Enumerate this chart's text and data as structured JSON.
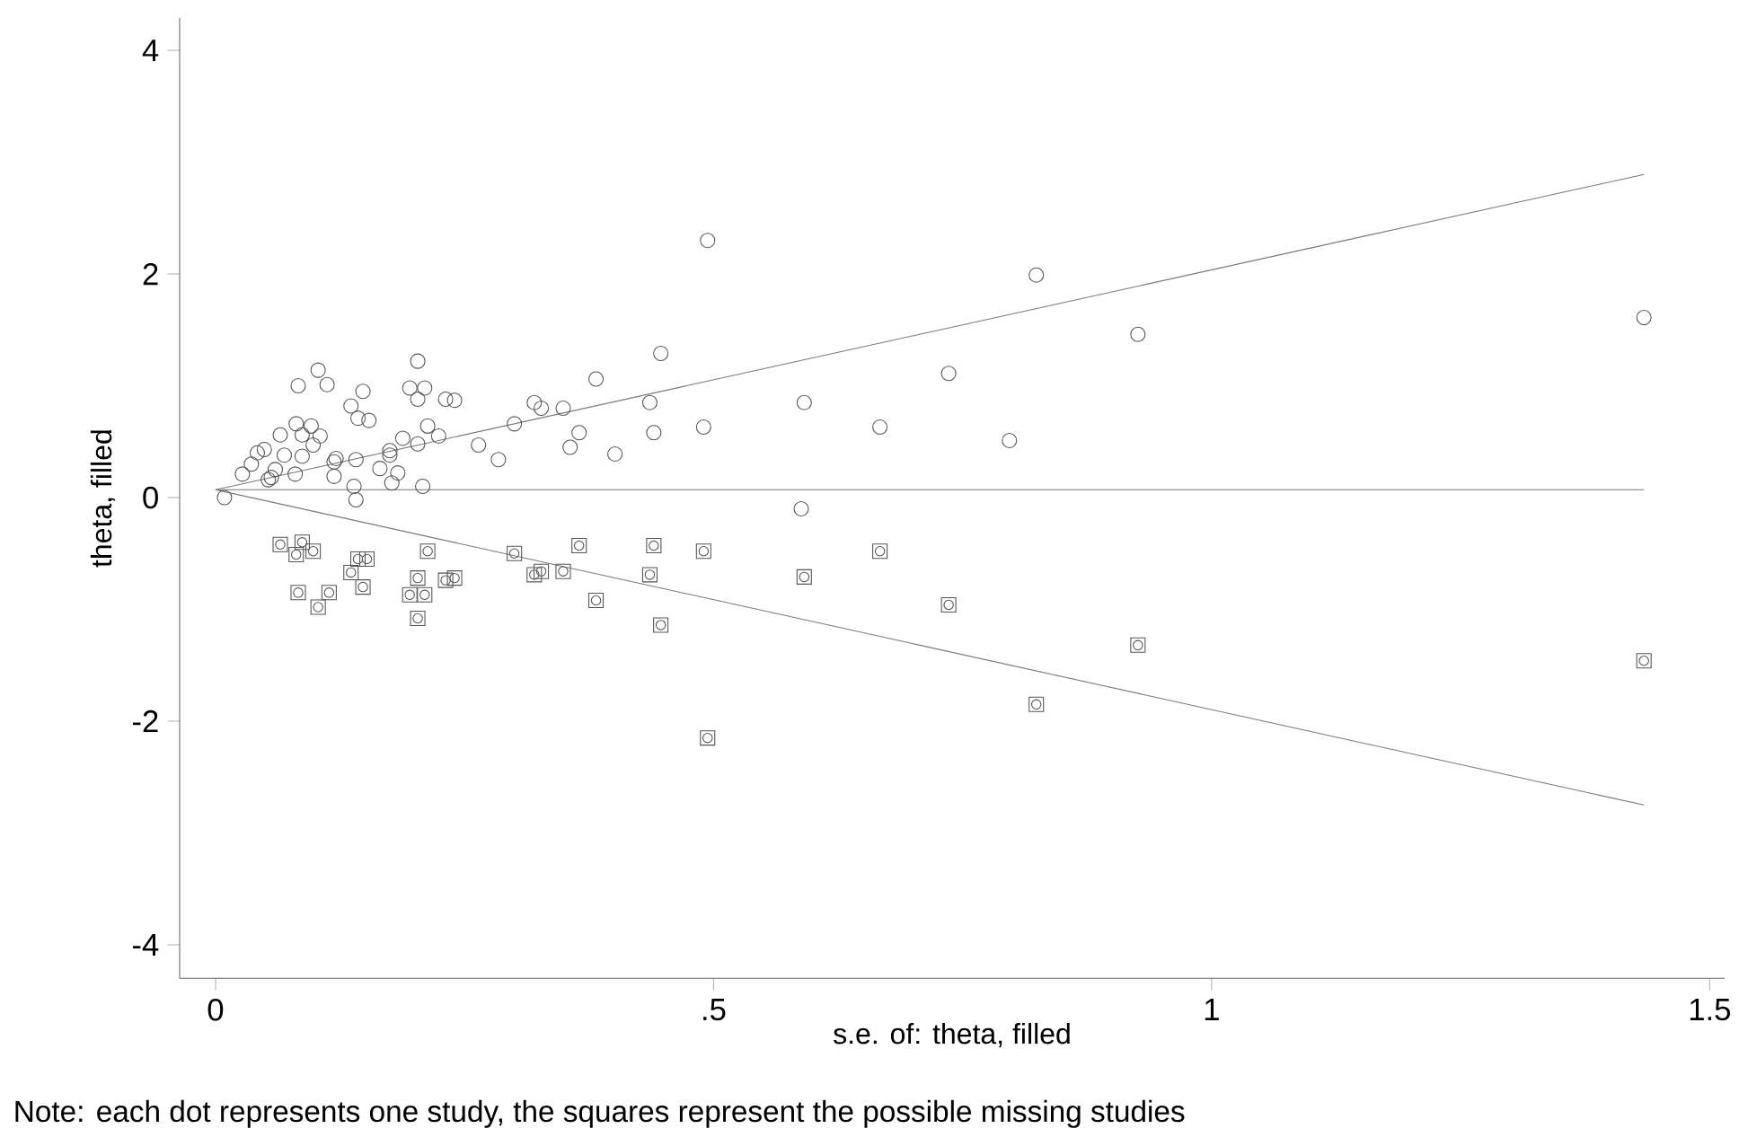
{
  "chart_data": {
    "type": "scatter",
    "xlabel": "s.e. of: theta, filled",
    "ylabel": "theta, filled",
    "annotations": [
      "Note: each dot represents one study, the squares represent the possible missing studies"
    ],
    "xlim": [
      -0.036,
      1.515
    ],
    "ylim": [
      -4.3,
      4.29
    ],
    "xticks": [
      0,
      {
        "value": 0.5,
        "label": ".5"
      },
      1,
      1.5
    ],
    "yticks": [
      -4,
      -2,
      0,
      2,
      4
    ],
    "grid": false,
    "series": [
      {
        "marker": "circle",
        "color": "#555555",
        "x": [
          0.009,
          0.027,
          0.036,
          0.042,
          0.049,
          0.053,
          0.056,
          0.06,
          0.065,
          0.069,
          0.08,
          0.081,
          0.083,
          0.087,
          0.087,
          0.096,
          0.098,
          0.103,
          0.105,
          0.112,
          0.119,
          0.121,
          0.119,
          0.136,
          0.141,
          0.139,
          0.141,
          0.143,
          0.148,
          0.154,
          0.165,
          0.175,
          0.177,
          0.175,
          0.183,
          0.188,
          0.195,
          0.203,
          0.203,
          0.21,
          0.203,
          0.208,
          0.213,
          0.224,
          0.231,
          0.24,
          0.264,
          0.284,
          0.3,
          0.32,
          0.327,
          0.349,
          0.356,
          0.365,
          0.382,
          0.401,
          0.436,
          0.44,
          0.447,
          0.49,
          0.494,
          0.588,
          0.591,
          0.667,
          0.736,
          0.797,
          0.824,
          0.926,
          1.434
        ],
        "values": [
          0.0,
          0.21,
          0.3,
          0.4,
          0.43,
          0.16,
          0.18,
          0.25,
          0.56,
          0.38,
          0.21,
          0.66,
          1.0,
          0.37,
          0.56,
          0.64,
          0.47,
          1.14,
          0.55,
          1.01,
          0.32,
          0.35,
          0.19,
          0.82,
          0.34,
          0.1,
          -0.02,
          0.71,
          0.95,
          0.69,
          0.26,
          0.38,
          0.13,
          0.42,
          0.22,
          0.53,
          0.98,
          1.22,
          0.88,
          0.98,
          0.48,
          0.1,
          0.64,
          0.55,
          0.88,
          0.87,
          0.47,
          0.34,
          0.66,
          0.85,
          0.8,
          0.8,
          0.45,
          0.58,
          1.06,
          0.39,
          0.85,
          0.58,
          1.29,
          0.63,
          2.3,
          -0.1,
          0.85,
          0.63,
          1.11,
          0.51,
          1.99,
          1.46,
          1.61
        ]
      },
      {
        "marker": "square",
        "color": "#555555",
        "x": [
          0.065,
          0.081,
          0.087,
          0.098,
          0.083,
          0.103,
          0.114,
          0.136,
          0.143,
          0.148,
          0.152,
          0.195,
          0.203,
          0.203,
          0.21,
          0.213,
          0.231,
          0.24,
          0.3,
          0.32,
          0.327,
          0.349,
          0.365,
          0.382,
          0.436,
          0.44,
          0.447,
          0.49,
          0.494,
          0.591,
          0.667,
          0.736,
          0.824,
          0.926,
          1.434
        ],
        "values": [
          -0.42,
          -0.51,
          -0.4,
          -0.48,
          -0.85,
          -0.98,
          -0.85,
          -0.67,
          -0.55,
          -0.8,
          -0.55,
          -0.87,
          -0.72,
          -1.08,
          -0.87,
          -0.48,
          -0.74,
          -0.72,
          -0.5,
          -0.69,
          -0.66,
          -0.66,
          -0.43,
          -0.92,
          -0.69,
          -0.43,
          -1.14,
          -0.48,
          -2.15,
          -0.71,
          -0.48,
          -0.96,
          -1.85,
          -1.32,
          -1.46
        ]
      },
      {
        "type": "line",
        "marker": "none",
        "color": "#777777",
        "x": [
          0,
          1.434
        ],
        "values": [
          0.07,
          0.07
        ]
      },
      {
        "type": "line",
        "marker": "none",
        "color": "#777777",
        "x": [
          0,
          1.434
        ],
        "values": [
          0.07,
          2.89
        ]
      },
      {
        "type": "line",
        "marker": "none",
        "color": "#777777",
        "x": [
          0,
          1.434
        ],
        "values": [
          0.07,
          -2.75
        ]
      }
    ]
  }
}
